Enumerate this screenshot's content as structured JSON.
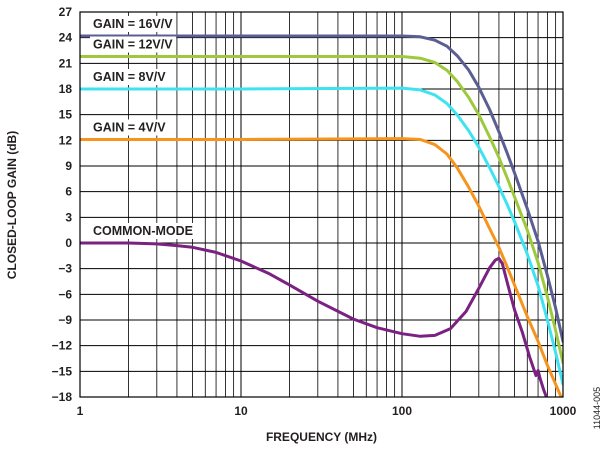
{
  "chart_data": {
    "type": "line",
    "xlabel": "FREQUENCY (MHz)",
    "ylabel": "CLOSED-LOOP GAIN (dB)",
    "xscale": "log",
    "xlim": [
      1,
      1000
    ],
    "ylim": [
      -18,
      27
    ],
    "grid": true,
    "x_ticks": [
      "1",
      "10",
      "100",
      "1000"
    ],
    "y_ticks": [
      "27",
      "24",
      "21",
      "18",
      "15",
      "12",
      "9",
      "6",
      "3",
      "0",
      "−3",
      "−6",
      "−9",
      "−12",
      "−15",
      "−18"
    ],
    "figure_id": "11044-005",
    "series": [
      {
        "name": "GAIN = 16V/V",
        "color": "#5b5e93",
        "x": [
          1,
          10,
          100,
          130,
          160,
          190,
          220,
          260,
          300,
          350,
          400,
          450,
          500,
          600,
          700,
          800,
          900,
          1000
        ],
        "y": [
          24.2,
          24.2,
          24.2,
          24.1,
          23.7,
          23.0,
          21.9,
          20.2,
          18.2,
          15.6,
          13.0,
          10.5,
          8.2,
          4.0,
          0.2,
          -3.8,
          -7.6,
          -11.5
        ]
      },
      {
        "name": "GAIN = 12V/V",
        "color": "#9ec93c",
        "x": [
          1,
          10,
          100,
          130,
          160,
          190,
          220,
          260,
          300,
          350,
          400,
          450,
          500,
          600,
          700,
          800,
          900,
          1000
        ],
        "y": [
          21.8,
          21.8,
          21.8,
          21.6,
          21.1,
          20.2,
          18.9,
          17.0,
          15.0,
          12.4,
          10.0,
          7.6,
          5.4,
          1.5,
          -2.3,
          -6.3,
          -10.2,
          -14.0
        ]
      },
      {
        "name": "GAIN = 8V/V",
        "color": "#3fe3f0",
        "x": [
          1,
          10,
          100,
          130,
          160,
          190,
          220,
          260,
          300,
          350,
          400,
          450,
          500,
          600,
          700,
          800,
          900,
          1000
        ],
        "y": [
          18.0,
          18.0,
          18.1,
          17.9,
          17.3,
          16.3,
          15.0,
          13.1,
          11.2,
          8.8,
          6.6,
          4.5,
          2.5,
          -1.3,
          -5.0,
          -9.0,
          -12.8,
          -16.5
        ]
      },
      {
        "name": "GAIN = 4V/V",
        "color": "#f7941d",
        "x": [
          1,
          10,
          100,
          130,
          160,
          190,
          220,
          260,
          300,
          350,
          400,
          450,
          500,
          600,
          700,
          800,
          900,
          1000
        ],
        "y": [
          12.1,
          12.1,
          12.2,
          12.1,
          11.5,
          10.4,
          8.8,
          6.5,
          4.3,
          1.7,
          -0.5,
          -2.8,
          -4.9,
          -8.6,
          -11.5,
          -14.3,
          -16.5,
          -18.5
        ]
      },
      {
        "name": "COMMON-MODE",
        "color": "#7b2181",
        "x": [
          1,
          2,
          3,
          4,
          5,
          7,
          10,
          15,
          20,
          30,
          50,
          70,
          100,
          130,
          160,
          200,
          250,
          300,
          350,
          380,
          400,
          420,
          450,
          500,
          560,
          620,
          680,
          700,
          720,
          760,
          800,
          850
        ],
        "y": [
          0,
          0,
          -0.1,
          -0.3,
          -0.5,
          -1.1,
          -2.1,
          -3.6,
          -4.9,
          -6.8,
          -8.9,
          -9.9,
          -10.6,
          -10.9,
          -10.8,
          -10.0,
          -8.0,
          -5.3,
          -2.9,
          -2.0,
          -1.8,
          -2.4,
          -4.6,
          -7.8,
          -10.5,
          -13.3,
          -15.5,
          -14.9,
          -15.8,
          -17.2,
          -18.3,
          -19.5
        ]
      }
    ]
  }
}
